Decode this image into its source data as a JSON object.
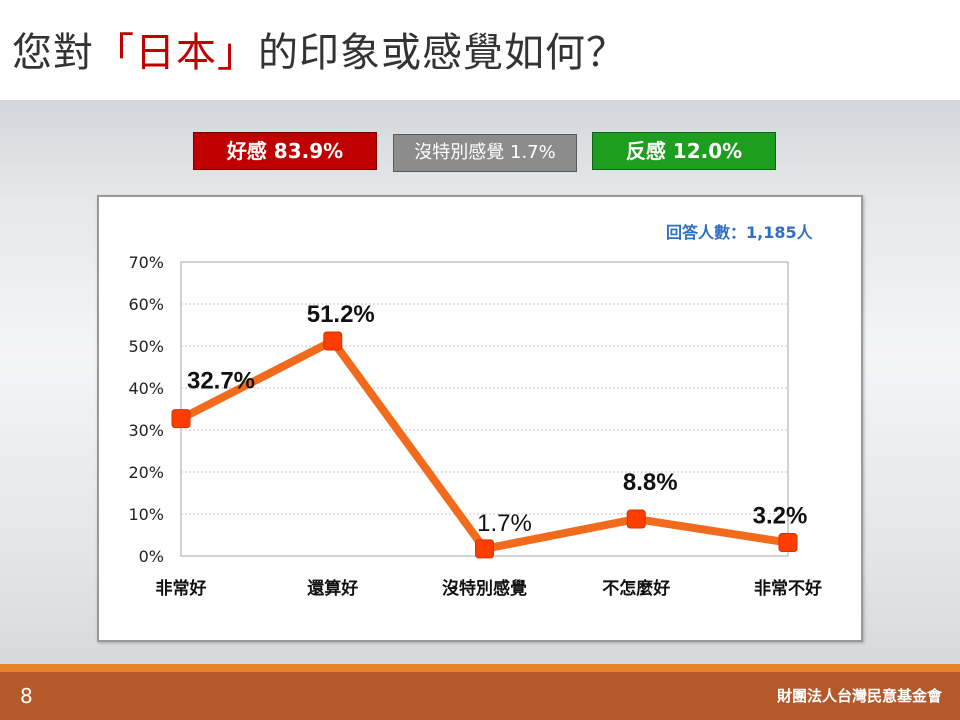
{
  "title": {
    "before": "您對",
    "highlight": "「日本」",
    "after": "的印象或感覺如何？"
  },
  "summary": {
    "positive": "好感 83.9%",
    "neutral": "沒特別感覺 1.7%",
    "negative": "反感 12.0%"
  },
  "respondents_label": "回答人數：1,185人",
  "chart_data": {
    "type": "line",
    "categories": [
      "非常好",
      "還算好",
      "沒特別感覺",
      "不怎麼好",
      "非常不好"
    ],
    "values": [
      32.7,
      51.2,
      1.7,
      8.8,
      3.2
    ],
    "value_labels": [
      "32.7%",
      "51.2%",
      "1.7%",
      "8.8%",
      "3.2%"
    ],
    "y_ticks": [
      "0%",
      "10%",
      "20%",
      "30%",
      "40%",
      "50%",
      "60%",
      "70%"
    ],
    "ylim": [
      0,
      70
    ],
    "grid": true,
    "line_color": "#f26b1d",
    "marker_color": "#ff3d00"
  },
  "footer": {
    "page_number": "8",
    "organization": "財團法人台灣民意基金會"
  },
  "colors": {
    "title_highlight": "#c00000",
    "positive": "#c00000",
    "neutral": "#8c8c8c",
    "negative": "#1e9e1e",
    "footer": "#b5592a",
    "accent_line": "#e8852a"
  }
}
